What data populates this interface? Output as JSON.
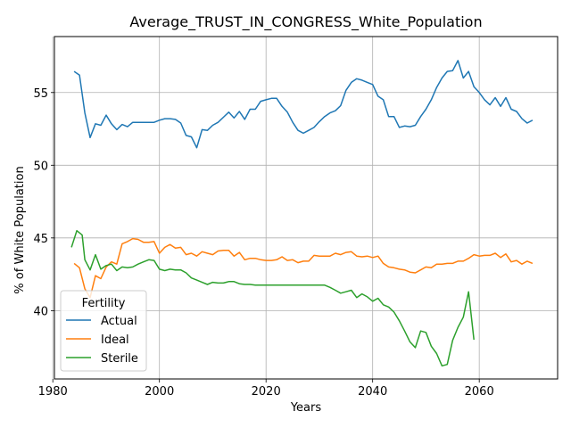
{
  "chart_data": {
    "type": "line",
    "title": "Average_TRUST_IN_CONGRESS_White_Population",
    "xlabel": "Years",
    "ylabel": "% of White Population",
    "xlim": [
      1980.3,
      2074.7
    ],
    "ylim": [
      35.3,
      58.85
    ],
    "xticks": [
      1980,
      2000,
      2020,
      2040,
      2060
    ],
    "yticks": [
      40,
      45,
      50,
      55
    ],
    "grid": true,
    "legend": {
      "title": "Fertility",
      "placement": "lower-left"
    },
    "series": [
      {
        "name": "Actual",
        "color": "#1f77b4",
        "x": [
          1984,
          1985,
          1986,
          1987,
          1988,
          1989,
          1990,
          1991,
          1992,
          1993,
          1994,
          1995,
          1996,
          1997,
          1998,
          1999,
          2000,
          2001,
          2002,
          2003,
          2004,
          2005,
          2006,
          2007,
          2008,
          2009,
          2010,
          2011,
          2012,
          2013,
          2014,
          2015,
          2016,
          2017,
          2018,
          2019,
          2020,
          2021,
          2022,
          2023,
          2024,
          2025,
          2026,
          2027,
          2028,
          2029,
          2030,
          2031,
          2032,
          2033,
          2034,
          2035,
          2036,
          2037,
          2038,
          2039,
          2040,
          2041,
          2042,
          2043,
          2044,
          2045,
          2046,
          2047,
          2048,
          2049,
          2050,
          2051,
          2052,
          2053,
          2054,
          2055,
          2056,
          2057,
          2058,
          2059,
          2060,
          2061,
          2062,
          2063,
          2064,
          2065,
          2066,
          2067,
          2068,
          2069,
          2070
        ],
        "y": [
          56.45,
          56.2,
          53.6,
          51.9,
          52.85,
          52.75,
          53.45,
          52.85,
          52.45,
          52.8,
          52.65,
          52.95,
          52.95,
          52.95,
          52.95,
          52.95,
          53.1,
          53.2,
          53.2,
          53.15,
          52.9,
          52.05,
          51.95,
          51.2,
          52.45,
          52.4,
          52.75,
          52.95,
          53.3,
          53.65,
          53.25,
          53.7,
          53.15,
          53.85,
          53.85,
          54.4,
          54.5,
          54.6,
          54.6,
          54.05,
          53.65,
          52.95,
          52.4,
          52.2,
          52.4,
          52.6,
          53.0,
          53.35,
          53.6,
          53.75,
          54.1,
          55.15,
          55.7,
          55.95,
          55.85,
          55.7,
          55.55,
          54.75,
          54.5,
          53.35,
          53.35,
          52.6,
          52.7,
          52.65,
          52.75,
          53.35,
          53.85,
          54.5,
          55.35,
          56.0,
          56.45,
          56.5,
          57.2,
          56.0,
          56.45,
          55.4,
          55.0,
          54.5,
          54.15,
          54.65,
          54.05,
          54.65,
          53.85,
          53.7,
          53.2,
          52.9,
          53.1
        ]
      },
      {
        "name": "Ideal",
        "color": "#ff7f0e",
        "x": [
          1984,
          1985,
          1986,
          1987,
          1988,
          1989,
          1990,
          1991,
          1992,
          1993,
          1994,
          1995,
          1996,
          1997,
          1998,
          1999,
          2000,
          2001,
          2002,
          2003,
          2004,
          2005,
          2006,
          2007,
          2008,
          2009,
          2010,
          2011,
          2012,
          2013,
          2014,
          2015,
          2016,
          2017,
          2018,
          2019,
          2020,
          2021,
          2022,
          2023,
          2024,
          2025,
          2026,
          2027,
          2028,
          2029,
          2030,
          2031,
          2032,
          2033,
          2034,
          2035,
          2036,
          2037,
          2038,
          2039,
          2040,
          2041,
          2042,
          2043,
          2044,
          2045,
          2046,
          2047,
          2048,
          2049,
          2050,
          2051,
          2052,
          2053,
          2054,
          2055,
          2056,
          2057,
          2058,
          2059,
          2060,
          2061,
          2062,
          2063,
          2064,
          2065,
          2066,
          2067,
          2068,
          2069,
          2070
        ],
        "y": [
          43.25,
          42.95,
          41.5,
          40.9,
          42.4,
          42.2,
          43.0,
          43.35,
          43.2,
          44.6,
          44.75,
          44.95,
          44.9,
          44.7,
          44.7,
          44.75,
          43.95,
          44.35,
          44.55,
          44.3,
          44.35,
          43.85,
          43.95,
          43.75,
          44.05,
          43.95,
          43.85,
          44.1,
          44.15,
          44.15,
          43.75,
          44.0,
          43.5,
          43.6,
          43.6,
          43.5,
          43.45,
          43.45,
          43.5,
          43.7,
          43.45,
          43.5,
          43.3,
          43.4,
          43.4,
          43.8,
          43.75,
          43.75,
          43.75,
          43.95,
          43.85,
          44.0,
          44.05,
          43.75,
          43.7,
          43.75,
          43.65,
          43.75,
          43.25,
          43.0,
          42.95,
          42.85,
          42.8,
          42.65,
          42.6,
          42.8,
          43.0,
          42.95,
          43.2,
          43.2,
          43.25,
          43.25,
          43.4,
          43.4,
          43.6,
          43.85,
          43.75,
          43.8,
          43.8,
          43.95,
          43.65,
          43.9,
          43.35,
          43.45,
          43.2,
          43.4,
          43.25
        ]
      },
      {
        "name": "Sterile",
        "color": "#2ca02c",
        "x": [
          1983.5,
          1984.5,
          1985.5,
          1986,
          1987,
          1988,
          1989,
          1990,
          1991,
          1992,
          1993,
          1994,
          1995,
          1996,
          1997,
          1998,
          1999,
          2000,
          2001,
          2002,
          2003,
          2004,
          2005,
          2006,
          2007,
          2008,
          2009,
          2010,
          2011,
          2012,
          2013,
          2014,
          2015,
          2016,
          2017,
          2018,
          2019,
          2020,
          2021,
          2022,
          2023,
          2024,
          2025,
          2026,
          2027,
          2028,
          2029,
          2030,
          2031,
          2032,
          2033,
          2034,
          2035,
          2036,
          2037,
          2038,
          2039,
          2040,
          2041,
          2042,
          2043,
          2044,
          2045,
          2046,
          2047,
          2048,
          2049,
          2050,
          2051,
          2052,
          2053,
          2054,
          2055,
          2056,
          2057,
          2058,
          2059
        ],
        "y": [
          44.35,
          45.5,
          45.2,
          43.5,
          42.8,
          43.85,
          42.85,
          43.1,
          43.2,
          42.75,
          43.0,
          42.95,
          43.0,
          43.2,
          43.35,
          43.5,
          43.45,
          42.85,
          42.75,
          42.85,
          42.8,
          42.8,
          42.6,
          42.25,
          42.1,
          41.95,
          41.8,
          41.95,
          41.9,
          41.9,
          42.0,
          42.0,
          41.85,
          41.8,
          41.8,
          41.75,
          41.75,
          41.75,
          41.75,
          41.75,
          41.75,
          41.75,
          41.75,
          41.75,
          41.75,
          41.75,
          41.75,
          41.75,
          41.75,
          41.6,
          41.4,
          41.2,
          41.3,
          41.4,
          40.9,
          41.15,
          40.95,
          40.65,
          40.85,
          40.4,
          40.25,
          39.9,
          39.3,
          38.6,
          37.85,
          37.45,
          38.6,
          38.5,
          37.55,
          37.05,
          36.2,
          36.3,
          37.95,
          38.85,
          39.55,
          41.3,
          38.0
        ]
      }
    ]
  }
}
